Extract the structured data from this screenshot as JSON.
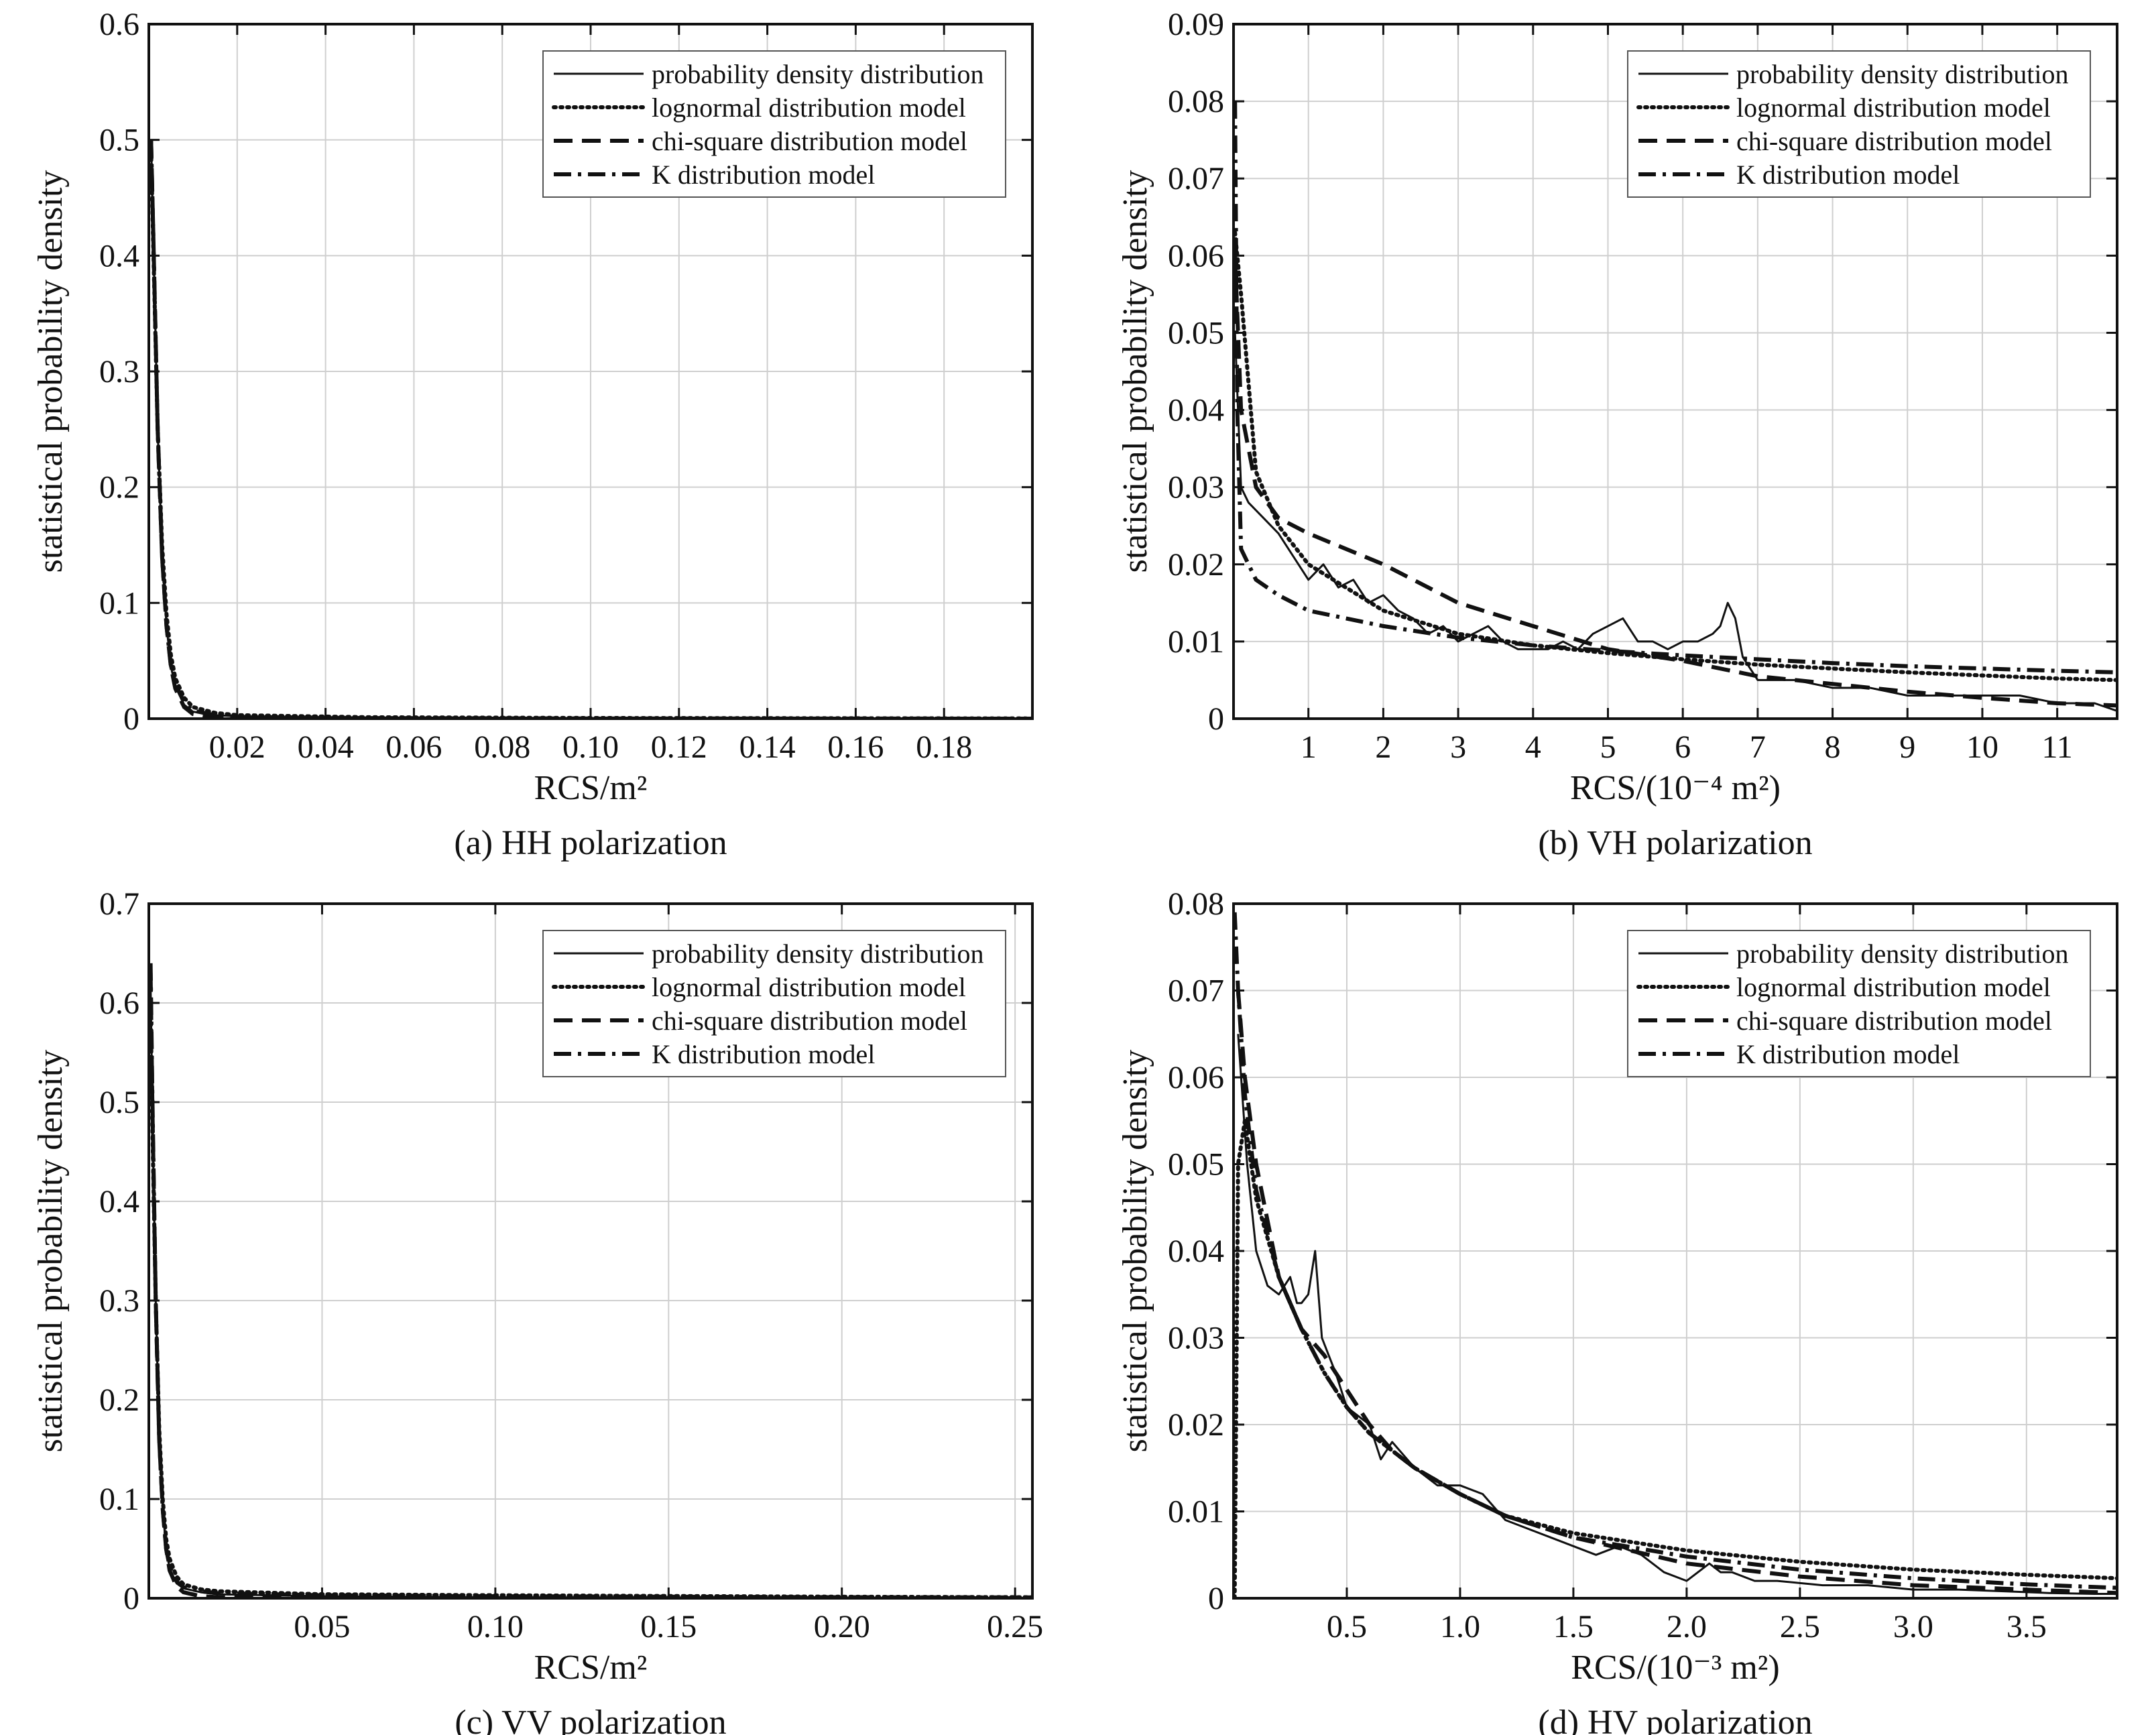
{
  "chart_data": [
    {
      "type": "line",
      "caption": "(a) HH polarization",
      "xlabel": "RCS/m²",
      "ylabel": "statistical probability density",
      "xlim": [
        0,
        0.2
      ],
      "ylim": [
        0,
        0.6
      ],
      "xticks": [
        0.02,
        0.04,
        0.06,
        0.08,
        0.1,
        0.12,
        0.14,
        0.16,
        0.18
      ],
      "xtick_labels": [
        "0.02",
        "0.04",
        "0.06",
        "0.08",
        "0.10",
        "0.12",
        "0.14",
        "0.16",
        "0.18"
      ],
      "yticks": [
        0,
        0.1,
        0.2,
        0.3,
        0.4,
        0.5,
        0.6
      ],
      "ytick_labels": [
        "0",
        "0.1",
        "0.2",
        "0.3",
        "0.4",
        "0.5",
        "0.6"
      ],
      "grid": true,
      "legend_position": "top-right",
      "series": [
        {
          "name": "probability density distribution",
          "style": "solid",
          "x": [
            0.0005,
            0.001,
            0.002,
            0.003,
            0.004,
            0.005,
            0.006,
            0.008,
            0.01,
            0.015,
            0.02,
            0.05,
            0.1,
            0.2
          ],
          "y": [
            0.5,
            0.42,
            0.25,
            0.14,
            0.08,
            0.045,
            0.028,
            0.012,
            0.006,
            0.003,
            0.002,
            0.001,
            0.0005,
            0.0002
          ]
        },
        {
          "name": "lognormal distribution model",
          "style": "dotted",
          "x": [
            0.0005,
            0.001,
            0.002,
            0.003,
            0.004,
            0.005,
            0.006,
            0.008,
            0.01,
            0.015,
            0.02,
            0.05,
            0.1,
            0.2
          ],
          "y": [
            0.49,
            0.41,
            0.25,
            0.15,
            0.09,
            0.055,
            0.035,
            0.018,
            0.01,
            0.005,
            0.003,
            0.0012,
            0.0006,
            0.0002
          ]
        },
        {
          "name": "chi-square distribution model",
          "style": "dashed",
          "x": [
            0.0005,
            0.001,
            0.002,
            0.003,
            0.004,
            0.005,
            0.006,
            0.008,
            0.01,
            0.015,
            0.02,
            0.05,
            0.1,
            0.2
          ],
          "y": [
            0.5,
            0.42,
            0.25,
            0.14,
            0.08,
            0.045,
            0.026,
            0.01,
            0.004,
            0.001,
            0.0004,
            0,
            0,
            0
          ]
        },
        {
          "name": "K distribution model",
          "style": "dashdot",
          "x": [
            0.0005,
            0.001,
            0.002,
            0.003,
            0.004,
            0.005,
            0.006,
            0.008,
            0.01,
            0.015,
            0.02,
            0.05,
            0.1,
            0.2
          ],
          "y": [
            0.5,
            0.42,
            0.25,
            0.14,
            0.08,
            0.046,
            0.03,
            0.014,
            0.007,
            0.003,
            0.0015,
            0.0005,
            0.0002,
            0
          ]
        }
      ]
    },
    {
      "type": "line",
      "caption": "(b) VH polarization",
      "xlabel": "RCS/(10⁻⁴ m²)",
      "ylabel": "statistical probability density",
      "xlim": [
        0,
        11.8
      ],
      "ylim": [
        0,
        0.09
      ],
      "xticks": [
        1,
        2,
        3,
        4,
        5,
        6,
        7,
        8,
        9,
        10,
        11
      ],
      "xtick_labels": [
        "1",
        "2",
        "3",
        "4",
        "5",
        "6",
        "7",
        "8",
        "9",
        "10",
        "11"
      ],
      "yticks": [
        0,
        0.01,
        0.02,
        0.03,
        0.04,
        0.05,
        0.06,
        0.07,
        0.08,
        0.09
      ],
      "ytick_labels": [
        "0",
        "0.01",
        "0.02",
        "0.03",
        "0.04",
        "0.05",
        "0.06",
        "0.07",
        "0.08",
        "0.09"
      ],
      "grid": true,
      "legend_position": "top-right",
      "series": [
        {
          "name": "probability density distribution",
          "style": "solid",
          "x": [
            0.02,
            0.1,
            0.2,
            0.4,
            0.6,
            0.8,
            1.0,
            1.2,
            1.4,
            1.6,
            1.8,
            2.0,
            2.2,
            2.4,
            2.6,
            2.8,
            3.0,
            3.2,
            3.4,
            3.6,
            3.8,
            4.0,
            4.2,
            4.4,
            4.6,
            4.8,
            5.0,
            5.2,
            5.4,
            5.6,
            5.8,
            6.0,
            6.2,
            6.4,
            6.5,
            6.6,
            6.7,
            6.8,
            7.0,
            7.5,
            8.0,
            8.5,
            9.0,
            9.5,
            10.0,
            10.5,
            11.0,
            11.5,
            11.8
          ],
          "y": [
            0.05,
            0.03,
            0.028,
            0.026,
            0.024,
            0.021,
            0.018,
            0.02,
            0.017,
            0.018,
            0.015,
            0.016,
            0.014,
            0.013,
            0.011,
            0.012,
            0.01,
            0.011,
            0.012,
            0.01,
            0.009,
            0.009,
            0.009,
            0.01,
            0.009,
            0.011,
            0.012,
            0.013,
            0.01,
            0.01,
            0.009,
            0.01,
            0.01,
            0.011,
            0.012,
            0.015,
            0.013,
            0.008,
            0.005,
            0.005,
            0.004,
            0.004,
            0.003,
            0.003,
            0.003,
            0.003,
            0.002,
            0.002,
            0.001
          ]
        },
        {
          "name": "lognormal distribution model",
          "style": "dotted",
          "x": [
            0.02,
            0.1,
            0.3,
            0.6,
            1.0,
            2.0,
            3.0,
            4.0,
            5.0,
            6.0,
            7.0,
            8.0,
            9.0,
            10.0,
            11.0,
            11.8
          ],
          "y": [
            0.063,
            0.055,
            0.032,
            0.025,
            0.02,
            0.014,
            0.011,
            0.0095,
            0.0085,
            0.0077,
            0.007,
            0.0065,
            0.006,
            0.0056,
            0.0052,
            0.005
          ]
        },
        {
          "name": "chi-square distribution model",
          "style": "dashed",
          "x": [
            0.02,
            0.1,
            0.3,
            0.6,
            1.0,
            2.0,
            3.0,
            4.0,
            5.0,
            6.0,
            7.0,
            8.0,
            9.0,
            10.0,
            11.0,
            11.8
          ],
          "y": [
            0.06,
            0.04,
            0.03,
            0.026,
            0.024,
            0.02,
            0.015,
            0.012,
            0.009,
            0.0075,
            0.0055,
            0.0045,
            0.0035,
            0.0027,
            0.002,
            0.0017
          ]
        },
        {
          "name": "K distribution model",
          "style": "dashdot",
          "x": [
            0.02,
            0.05,
            0.1,
            0.3,
            0.6,
            1.0,
            2.0,
            3.0,
            4.0,
            5.0,
            6.0,
            7.0,
            8.0,
            9.0,
            10.0,
            11.0,
            11.8
          ],
          "y": [
            0.08,
            0.04,
            0.022,
            0.018,
            0.016,
            0.014,
            0.012,
            0.0105,
            0.0095,
            0.0088,
            0.0082,
            0.0077,
            0.0072,
            0.0068,
            0.0065,
            0.0062,
            0.006
          ]
        }
      ]
    },
    {
      "type": "line",
      "caption": "(c) VV polarization",
      "xlabel": "RCS/m²",
      "ylabel": "statistical probability density",
      "xlim": [
        0,
        0.255
      ],
      "ylim": [
        0,
        0.7
      ],
      "xticks": [
        0.05,
        0.1,
        0.15,
        0.2,
        0.25
      ],
      "xtick_labels": [
        "0.05",
        "0.10",
        "0.15",
        "0.20",
        "0.25"
      ],
      "yticks": [
        0,
        0.1,
        0.2,
        0.3,
        0.4,
        0.5,
        0.6,
        0.7
      ],
      "ytick_labels": [
        "0",
        "0.1",
        "0.2",
        "0.3",
        "0.4",
        "0.5",
        "0.6",
        "0.7"
      ],
      "grid": true,
      "legend_position": "top-right",
      "series": [
        {
          "name": "probability density distribution",
          "style": "solid",
          "x": [
            0.0005,
            0.001,
            0.002,
            0.003,
            0.004,
            0.005,
            0.006,
            0.008,
            0.01,
            0.015,
            0.02,
            0.05,
            0.1,
            0.2,
            0.255
          ],
          "y": [
            0.62,
            0.5,
            0.3,
            0.16,
            0.09,
            0.05,
            0.03,
            0.015,
            0.01,
            0.006,
            0.004,
            0.002,
            0.001,
            0.0005,
            0.0003
          ]
        },
        {
          "name": "lognormal distribution model",
          "style": "dotted",
          "x": [
            0.0005,
            0.001,
            0.002,
            0.003,
            0.004,
            0.005,
            0.006,
            0.008,
            0.01,
            0.015,
            0.02,
            0.05,
            0.1,
            0.2,
            0.255
          ],
          "y": [
            0.6,
            0.48,
            0.3,
            0.17,
            0.1,
            0.06,
            0.04,
            0.022,
            0.014,
            0.009,
            0.007,
            0.004,
            0.003,
            0.0015,
            0.001
          ]
        },
        {
          "name": "chi-square distribution model",
          "style": "dashed",
          "x": [
            0.0005,
            0.001,
            0.002,
            0.003,
            0.004,
            0.005,
            0.006,
            0.008,
            0.01,
            0.015,
            0.02,
            0.05,
            0.1,
            0.2,
            0.255
          ],
          "y": [
            0.63,
            0.5,
            0.3,
            0.16,
            0.09,
            0.05,
            0.028,
            0.012,
            0.006,
            0.002,
            0.001,
            0.0002,
            0,
            0,
            0
          ]
        },
        {
          "name": "K distribution model",
          "style": "dashdot",
          "x": [
            0.0005,
            0.001,
            0.002,
            0.003,
            0.004,
            0.005,
            0.006,
            0.008,
            0.01,
            0.015,
            0.02,
            0.05,
            0.1,
            0.2,
            0.255
          ],
          "y": [
            0.64,
            0.51,
            0.3,
            0.16,
            0.09,
            0.05,
            0.032,
            0.017,
            0.011,
            0.007,
            0.005,
            0.003,
            0.002,
            0.001,
            0.0008
          ]
        }
      ]
    },
    {
      "type": "line",
      "caption": "(d) HV polarization",
      "xlabel": "RCS/(10⁻³ m²)",
      "ylabel": "statistical probability density",
      "xlim": [
        0,
        3.9
      ],
      "ylim": [
        0,
        0.08
      ],
      "xticks": [
        0.5,
        1.0,
        1.5,
        2.0,
        2.5,
        3.0,
        3.5
      ],
      "xtick_labels": [
        "0.5",
        "1.0",
        "1.5",
        "2.0",
        "2.5",
        "3.0",
        "3.5"
      ],
      "yticks": [
        0,
        0.01,
        0.02,
        0.03,
        0.04,
        0.05,
        0.06,
        0.07,
        0.08
      ],
      "ytick_labels": [
        "0",
        "0.01",
        "0.02",
        "0.03",
        "0.04",
        "0.05",
        "0.06",
        "0.07",
        "0.08"
      ],
      "grid": true,
      "legend_position": "top-right",
      "series": [
        {
          "name": "probability density distribution",
          "style": "solid",
          "x": [
            0.02,
            0.06,
            0.1,
            0.15,
            0.2,
            0.25,
            0.28,
            0.3,
            0.33,
            0.36,
            0.39,
            0.42,
            0.45,
            0.5,
            0.55,
            0.6,
            0.65,
            0.7,
            0.8,
            0.9,
            1.0,
            1.1,
            1.2,
            1.3,
            1.4,
            1.5,
            1.6,
            1.7,
            1.8,
            1.9,
            2.0,
            2.1,
            2.15,
            2.2,
            2.3,
            2.4,
            2.6,
            2.8,
            3.0,
            3.2,
            3.4,
            3.6,
            3.8,
            3.9
          ],
          "y": [
            0.065,
            0.05,
            0.04,
            0.036,
            0.035,
            0.037,
            0.034,
            0.034,
            0.035,
            0.04,
            0.03,
            0.028,
            0.026,
            0.022,
            0.021,
            0.02,
            0.016,
            0.018,
            0.015,
            0.013,
            0.013,
            0.012,
            0.009,
            0.008,
            0.007,
            0.006,
            0.005,
            0.006,
            0.005,
            0.003,
            0.002,
            0.004,
            0.003,
            0.003,
            0.002,
            0.002,
            0.0015,
            0.0015,
            0.001,
            0.001,
            0.0008,
            0.0006,
            0.0005,
            0.0005
          ]
        },
        {
          "name": "lognormal distribution model",
          "style": "dotted",
          "x": [
            0.005,
            0.02,
            0.05,
            0.1,
            0.2,
            0.3,
            0.4,
            0.5,
            0.6,
            0.7,
            0.8,
            1.0,
            1.2,
            1.5,
            2.0,
            2.5,
            3.0,
            3.5,
            3.9
          ],
          "y": [
            0.0,
            0.05,
            0.055,
            0.046,
            0.037,
            0.031,
            0.026,
            0.022,
            0.019,
            0.017,
            0.015,
            0.012,
            0.0095,
            0.0075,
            0.0055,
            0.0042,
            0.0033,
            0.0027,
            0.0023
          ]
        },
        {
          "name": "chi-square distribution model",
          "style": "dashed",
          "x": [
            0.02,
            0.05,
            0.1,
            0.2,
            0.3,
            0.4,
            0.5,
            0.6,
            0.7,
            0.8,
            1.0,
            1.2,
            1.5,
            2.0,
            2.5,
            3.0,
            3.5,
            3.9
          ],
          "y": [
            0.07,
            0.06,
            0.05,
            0.037,
            0.031,
            0.028,
            0.024,
            0.02,
            0.017,
            0.015,
            0.012,
            0.0095,
            0.007,
            0.004,
            0.0025,
            0.0015,
            0.001,
            0.0006
          ]
        },
        {
          "name": "K distribution model",
          "style": "dashdot",
          "x": [
            0.005,
            0.02,
            0.05,
            0.1,
            0.2,
            0.3,
            0.4,
            0.5,
            0.6,
            0.7,
            0.8,
            1.0,
            1.2,
            1.5,
            2.0,
            2.5,
            3.0,
            3.5,
            3.9
          ],
          "y": [
            0.079,
            0.07,
            0.058,
            0.047,
            0.037,
            0.031,
            0.026,
            0.022,
            0.019,
            0.017,
            0.015,
            0.012,
            0.0095,
            0.007,
            0.0048,
            0.0033,
            0.0023,
            0.0016,
            0.0012
          ]
        }
      ]
    }
  ]
}
